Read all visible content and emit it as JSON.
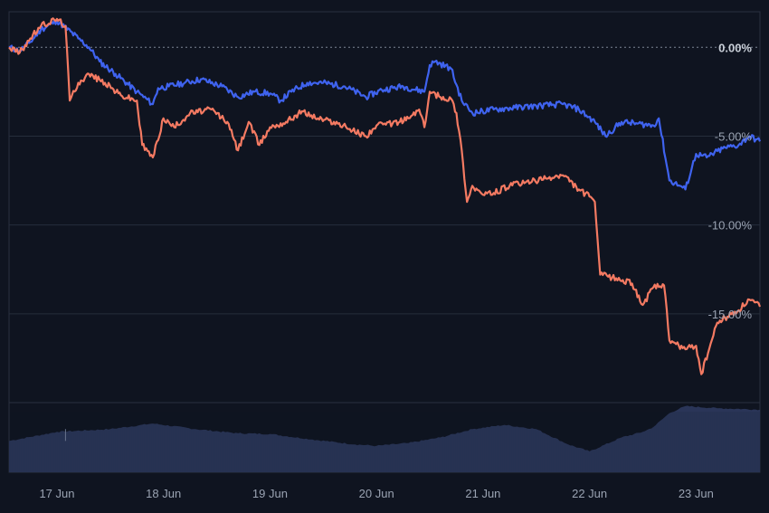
{
  "chart_data": {
    "type": "line",
    "x_ticks": [
      "17 Jun",
      "18 Jun",
      "19 Jun",
      "20 Jun",
      "21 Jun",
      "22 Jun",
      "23 Jun"
    ],
    "y_ticks": [
      "0.00%",
      "-5.00%",
      "-10.00%",
      "-15.00%"
    ],
    "y_tick_values": [
      0,
      -5,
      -10,
      -15
    ],
    "ylim": [
      -20,
      2
    ],
    "xlim": [
      16.55,
      23.6
    ],
    "grid": true,
    "series": [
      {
        "color": "#3f63ef",
        "x": [
          16.55,
          16.65,
          16.75,
          16.85,
          17.0,
          17.2,
          17.3,
          17.4,
          17.55,
          17.75,
          17.9,
          17.95,
          18.05,
          18.2,
          18.35,
          18.55,
          18.7,
          18.85,
          19.0,
          19.1,
          19.2,
          19.35,
          19.5,
          19.7,
          19.9,
          20.05,
          20.25,
          20.45,
          20.5,
          20.55,
          20.7,
          20.8,
          20.9,
          21.1,
          21.3,
          21.5,
          21.75,
          21.9,
          22.05,
          22.15,
          22.3,
          22.45,
          22.6,
          22.65,
          22.75,
          22.85,
          22.9,
          23.0,
          23.1,
          23.25,
          23.4,
          23.5,
          23.6
        ],
        "values": [
          0.0,
          -0.2,
          0.3,
          1.0,
          1.5,
          0.5,
          0.0,
          -0.8,
          -1.5,
          -2.5,
          -3.2,
          -2.3,
          -2.2,
          -2.0,
          -1.8,
          -2.2,
          -2.8,
          -2.5,
          -2.6,
          -3.0,
          -2.5,
          -2.0,
          -2.0,
          -2.2,
          -2.8,
          -2.4,
          -2.2,
          -2.5,
          -1.0,
          -0.8,
          -1.2,
          -3.0,
          -3.7,
          -3.5,
          -3.4,
          -3.3,
          -3.2,
          -3.5,
          -4.2,
          -5.0,
          -4.2,
          -4.3,
          -4.4,
          -4.0,
          -7.5,
          -7.8,
          -8.0,
          -6.0,
          -6.2,
          -5.7,
          -5.5,
          -5.0,
          -5.3
        ]
      },
      {
        "color": "#f47a62",
        "x": [
          16.55,
          16.65,
          16.75,
          16.85,
          17.0,
          17.08,
          17.12,
          17.2,
          17.3,
          17.45,
          17.6,
          17.75,
          17.8,
          17.9,
          18.0,
          18.1,
          18.25,
          18.45,
          18.6,
          18.7,
          18.8,
          18.9,
          19.0,
          19.15,
          19.3,
          19.45,
          19.6,
          19.75,
          19.9,
          20.0,
          20.15,
          20.3,
          20.4,
          20.45,
          20.5,
          20.6,
          20.7,
          20.75,
          20.8,
          20.85,
          20.9,
          21.0,
          21.1,
          21.25,
          21.4,
          21.6,
          21.75,
          21.9,
          22.0,
          22.05,
          22.1,
          22.25,
          22.4,
          22.5,
          22.6,
          22.7,
          22.75,
          22.9,
          23.0,
          23.05,
          23.2,
          23.4,
          23.5,
          23.6
        ],
        "values": [
          0.0,
          -0.3,
          0.5,
          1.2,
          1.6,
          1.2,
          -3.0,
          -2.0,
          -1.5,
          -2.0,
          -2.7,
          -3.0,
          -5.5,
          -6.2,
          -4.0,
          -4.5,
          -3.7,
          -3.5,
          -4.2,
          -5.8,
          -4.2,
          -5.5,
          -4.5,
          -4.2,
          -3.6,
          -4.0,
          -4.2,
          -4.6,
          -5.0,
          -4.4,
          -4.3,
          -4.0,
          -3.5,
          -4.5,
          -2.5,
          -2.8,
          -2.9,
          -3.7,
          -5.8,
          -8.7,
          -7.8,
          -8.3,
          -8.2,
          -7.8,
          -7.6,
          -7.4,
          -7.2,
          -8.0,
          -8.4,
          -8.7,
          -12.8,
          -13.0,
          -13.3,
          -14.5,
          -13.5,
          -13.4,
          -16.5,
          -17.0,
          -16.8,
          -18.4,
          -15.5,
          -14.8,
          -14.2,
          -14.6
        ]
      }
    ],
    "volume": {
      "color": "#2a3558",
      "x": [
        16.55,
        17.0,
        17.5,
        17.9,
        18.3,
        18.7,
        19.0,
        19.4,
        19.8,
        20.0,
        20.3,
        20.6,
        20.9,
        21.2,
        21.5,
        21.8,
        22.0,
        22.3,
        22.5,
        22.6,
        22.75,
        22.9,
        23.2,
        23.6
      ],
      "values": [
        0.45,
        0.58,
        0.62,
        0.7,
        0.62,
        0.56,
        0.55,
        0.47,
        0.4,
        0.38,
        0.42,
        0.5,
        0.62,
        0.68,
        0.62,
        0.4,
        0.3,
        0.5,
        0.58,
        0.65,
        0.85,
        0.95,
        0.92,
        0.9
      ]
    }
  }
}
